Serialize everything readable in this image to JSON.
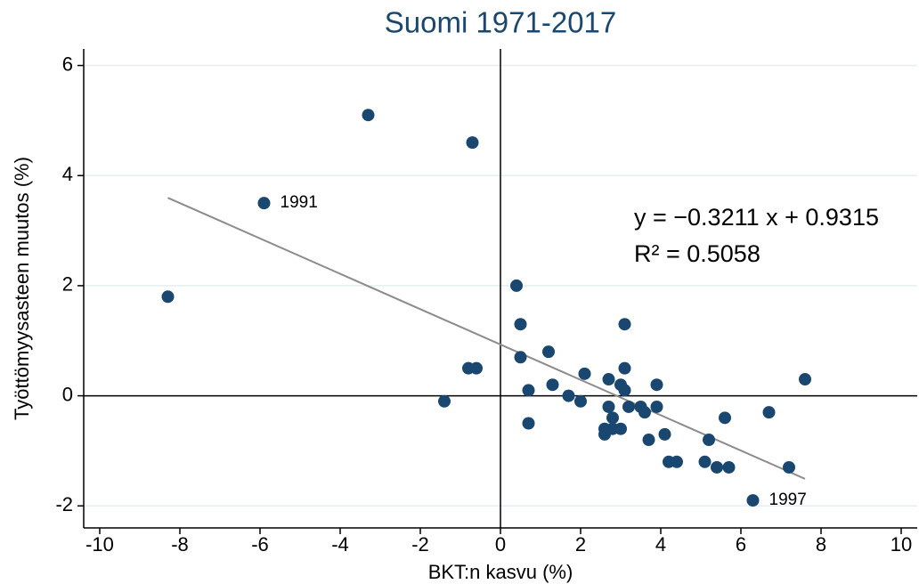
{
  "chart_data": {
    "type": "scatter",
    "title": "Suomi 1971-2017",
    "xlabel": "BKT:n kasvu (%)",
    "ylabel": "Työttömyysasteen muutos (%)",
    "x": [
      -3.3,
      -0.7,
      -5.9,
      -8.3,
      0.4,
      0.5,
      3.1,
      0.5,
      -0.8,
      -0.6,
      1.2,
      3.1,
      2.1,
      2.7,
      7.6,
      1.3,
      3.0,
      3.9,
      0.7,
      3.1,
      1.7,
      -1.4,
      2.0,
      2.7,
      3.2,
      3.5,
      3.9,
      3.6,
      6.7,
      5.6,
      2.8,
      0.7,
      2.6,
      2.8,
      3.0,
      2.6,
      4.1,
      3.7,
      5.2,
      4.2,
      4.4,
      5.1,
      5.4,
      5.7,
      7.2,
      6.3
    ],
    "values": [
      5.1,
      4.6,
      3.5,
      1.8,
      2.0,
      1.3,
      1.3,
      0.7,
      0.5,
      0.5,
      0.8,
      0.5,
      0.4,
      0.3,
      0.3,
      0.2,
      0.2,
      0.2,
      0.1,
      0.1,
      0.0,
      -0.1,
      -0.1,
      -0.2,
      -0.2,
      -0.2,
      -0.2,
      -0.3,
      -0.3,
      -0.4,
      -0.4,
      -0.5,
      -0.6,
      -0.6,
      -0.6,
      -0.7,
      -0.7,
      -0.8,
      -0.8,
      -1.2,
      -1.2,
      -1.2,
      -1.3,
      -1.3,
      -1.3,
      -1.9
    ],
    "color": "#1a476f",
    "point_labels": [
      {
        "text": "1991",
        "x": -5.9,
        "y": 3.5
      },
      {
        "text": "1997",
        "x": 6.3,
        "y": -1.9
      }
    ],
    "fit": {
      "slope": -0.3211,
      "intercept": 0.9315,
      "color": "#8c8c8c",
      "equation": "y = −0.3211 x + 0.9315",
      "r2": "R² = 0.5058"
    },
    "xlim": [
      -10.4,
      10.4
    ],
    "ylim": [
      -2.4,
      6.3
    ],
    "xticks": [
      -10,
      -8,
      -6,
      -4,
      -2,
      0,
      2,
      4,
      6,
      8,
      10
    ],
    "yticks": [
      -2,
      0,
      2,
      4,
      6
    ],
    "grid": true
  }
}
